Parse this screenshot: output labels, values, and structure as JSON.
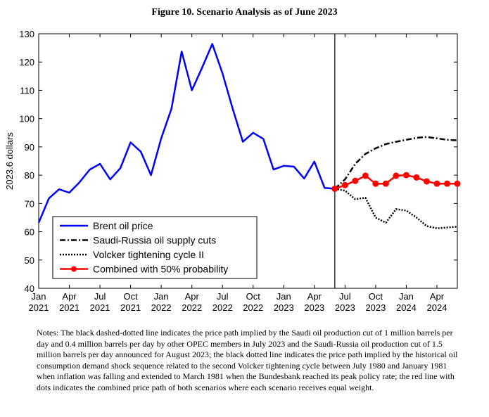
{
  "figure_title": "Figure 10. Scenario Analysis as of June 2023",
  "notes": "Notes: The black dashed-dotted line indicates the price path implied by the Saudi oil production cut of 1 million barrels per day and 0.4 million barrels per day by other OPEC members in July 2023 and the Saudi-Russia oil production cut of 1.5 million barrels per day announced for August 2023; the black dotted line indicates the price path implied by the historical oil consumption demand shock sequence related to the second Volcker tightening cycle between July 1980 and January 1981 when inflation was falling and extended to March 1981 when the Bundesbank reached its peak policy rate; the red line with dots indicates the combined price path of both scenarios where each scenario receives equal weight.",
  "chart_data": {
    "type": "line",
    "title": "Figure 10. Scenario Analysis as of June 2023",
    "ylabel": "2023.6 dollars",
    "xlabel": "",
    "ylim": [
      40,
      130
    ],
    "yticks": [
      40,
      50,
      60,
      70,
      80,
      90,
      100,
      110,
      120,
      130
    ],
    "xlim": [
      "2021-01",
      "2024-06"
    ],
    "xticks": [
      {
        "month": "2021-01",
        "label": [
          "Jan",
          "2021"
        ]
      },
      {
        "month": "2021-04",
        "label": [
          "Apr",
          "2021"
        ]
      },
      {
        "month": "2021-07",
        "label": [
          "Jul",
          "2021"
        ]
      },
      {
        "month": "2021-10",
        "label": [
          "Oct",
          "2021"
        ]
      },
      {
        "month": "2022-01",
        "label": [
          "Jan",
          "2022"
        ]
      },
      {
        "month": "2022-04",
        "label": [
          "Apr",
          "2022"
        ]
      },
      {
        "month": "2022-07",
        "label": [
          "Jul",
          "2022"
        ]
      },
      {
        "month": "2022-10",
        "label": [
          "Oct",
          "2022"
        ]
      },
      {
        "month": "2023-01",
        "label": [
          "Jan",
          "2023"
        ]
      },
      {
        "month": "2023-04",
        "label": [
          "Apr",
          "2023"
        ]
      },
      {
        "month": "2023-07",
        "label": [
          "Jul",
          "2023"
        ]
      },
      {
        "month": "2023-10",
        "label": [
          "Oct",
          "2023"
        ]
      },
      {
        "month": "2024-01",
        "label": [
          "Jan",
          "2024"
        ]
      },
      {
        "month": "2024-04",
        "label": [
          "Apr",
          "2024"
        ]
      }
    ],
    "vertical_line_month": "2023-06",
    "grid": false,
    "legend_position": "lower-left",
    "series": [
      {
        "name": "Brent oil price",
        "color": "#0000ff",
        "style": "solid",
        "x": [
          "2021-01",
          "2021-02",
          "2021-03",
          "2021-04",
          "2021-05",
          "2021-06",
          "2021-07",
          "2021-08",
          "2021-09",
          "2021-10",
          "2021-11",
          "2021-12",
          "2022-01",
          "2022-02",
          "2022-03",
          "2022-04",
          "2022-05",
          "2022-06",
          "2022-07",
          "2022-08",
          "2022-09",
          "2022-10",
          "2022-11",
          "2022-12",
          "2023-01",
          "2023-02",
          "2023-03",
          "2023-04",
          "2023-05",
          "2023-06"
        ],
        "values": [
          63.2,
          71.8,
          75.0,
          73.8,
          77.5,
          82.0,
          84.0,
          78.5,
          82.5,
          91.6,
          88.3,
          80.0,
          93.0,
          103.5,
          123.7,
          110.0,
          118.0,
          126.4,
          116.0,
          103.5,
          91.8,
          95.0,
          92.8,
          82.0,
          83.3,
          83.0,
          78.8,
          84.8,
          75.5,
          75.2
        ]
      },
      {
        "name": "Saudi-Russia oil supply cuts",
        "color": "#000000",
        "style": "dashdot",
        "x": [
          "2023-06",
          "2023-07",
          "2023-08",
          "2023-09",
          "2023-10",
          "2023-11",
          "2023-12",
          "2024-01",
          "2024-02",
          "2024-03",
          "2024-04",
          "2024-05",
          "2024-06"
        ],
        "values": [
          75.2,
          78.5,
          84.0,
          87.5,
          89.5,
          91.0,
          91.8,
          92.5,
          93.2,
          93.5,
          93.0,
          92.5,
          92.3
        ]
      },
      {
        "name": "Volcker tightening cycle II",
        "color": "#000000",
        "style": "dotted",
        "x": [
          "2023-06",
          "2023-07",
          "2023-08",
          "2023-09",
          "2023-10",
          "2023-11",
          "2023-12",
          "2024-01",
          "2024-02",
          "2024-03",
          "2024-04",
          "2024-05",
          "2024-06"
        ],
        "values": [
          75.2,
          74.5,
          71.5,
          72.0,
          65.0,
          63.2,
          68.0,
          67.5,
          65.0,
          62.0,
          61.2,
          61.5,
          61.8
        ]
      },
      {
        "name": "Combined with 50% probability",
        "color": "#ff0000",
        "style": "solid-markers",
        "x": [
          "2023-06",
          "2023-07",
          "2023-08",
          "2023-09",
          "2023-10",
          "2023-11",
          "2023-12",
          "2024-01",
          "2024-02",
          "2024-03",
          "2024-04",
          "2024-05",
          "2024-06"
        ],
        "values": [
          75.2,
          76.5,
          78.0,
          79.8,
          77.0,
          77.0,
          79.8,
          80.0,
          79.2,
          77.8,
          77.0,
          77.0,
          77.0
        ]
      }
    ]
  }
}
